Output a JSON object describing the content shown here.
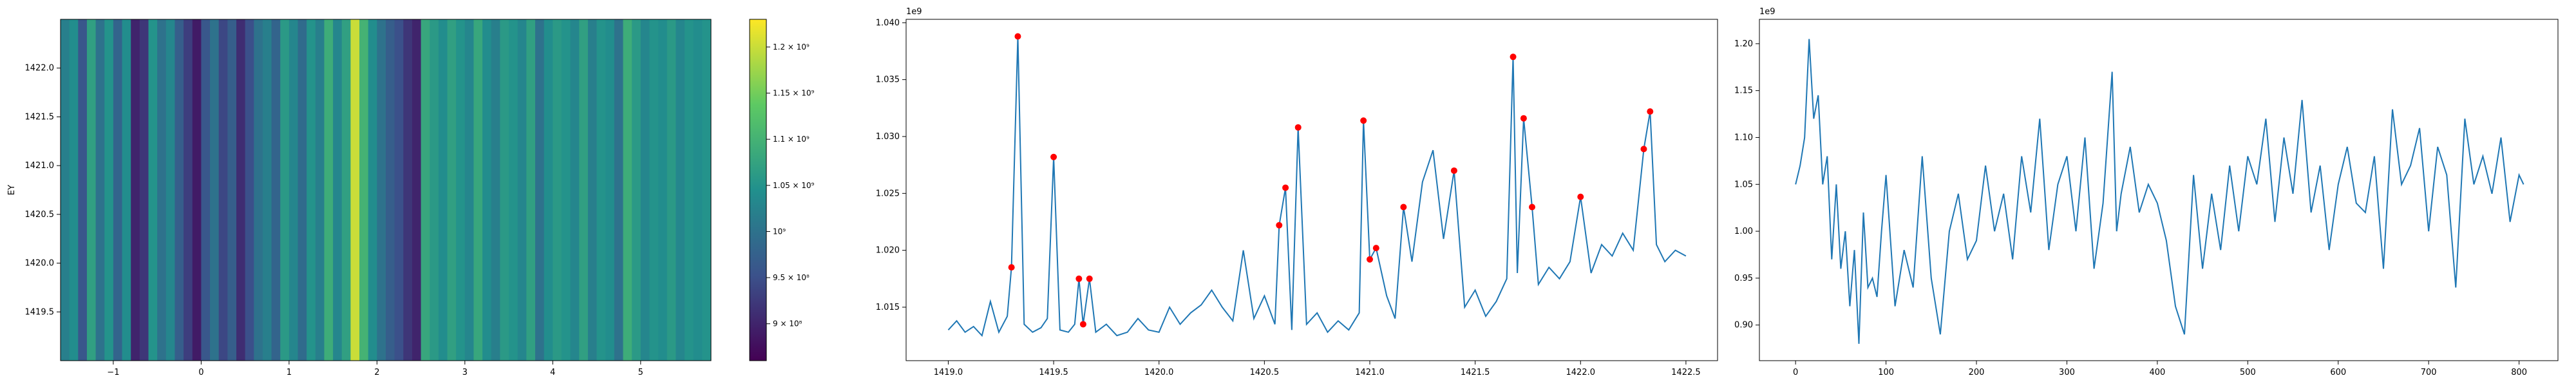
{
  "chart_data": [
    {
      "type": "heatmap",
      "ylabel": "EY",
      "x_ticks": [
        -1,
        0,
        1,
        2,
        3,
        4,
        5
      ],
      "y_ticks": [
        1419.5,
        1420.0,
        1420.5,
        1421.0,
        1421.5,
        1422.0
      ],
      "xlim": [
        -1.6,
        5.8
      ],
      "ylim": [
        1419.0,
        1422.5
      ],
      "colormap": "viridis",
      "colorbar": {
        "vmin": 860000000.0,
        "vmax": 1230000000.0,
        "tick_values": [
          900000000.0,
          950000000.0,
          1000000000.0,
          1050000000.0,
          1100000000.0,
          1150000000.0,
          1200000000.0
        ],
        "tick_labels": [
          "9 × 10⁸",
          "9.5 × 10⁸",
          "10⁹",
          "1.05 × 10⁹",
          "1.1 × 10⁹",
          "1.15 × 10⁹",
          "1.2 × 10⁹"
        ]
      },
      "column_levels": [
        [
          -1.6,
          1020000000.0
        ],
        [
          -1.5,
          1040000000.0
        ],
        [
          -1.4,
          960000000.0
        ],
        [
          -1.3,
          1070000000.0
        ],
        [
          -1.2,
          1000000000.0
        ],
        [
          -1.1,
          1050000000.0
        ],
        [
          -1.0,
          980000000.0
        ],
        [
          -0.9,
          1040000000.0
        ],
        [
          -0.8,
          900000000.0
        ],
        [
          -0.7,
          920000000.0
        ],
        [
          -0.6,
          1050000000.0
        ],
        [
          -0.5,
          1000000000.0
        ],
        [
          -0.4,
          1030000000.0
        ],
        [
          -0.3,
          970000000.0
        ],
        [
          -0.2,
          930000000.0
        ],
        [
          -0.1,
          890000000.0
        ],
        [
          0.0,
          960000000.0
        ],
        [
          0.1,
          1000000000.0
        ],
        [
          0.2,
          940000000.0
        ],
        [
          0.3,
          970000000.0
        ],
        [
          0.4,
          910000000.0
        ],
        [
          0.5,
          950000000.0
        ],
        [
          0.6,
          1000000000.0
        ],
        [
          0.7,
          1020000000.0
        ],
        [
          0.8,
          980000000.0
        ],
        [
          0.9,
          1060000000.0
        ],
        [
          1.0,
          1030000000.0
        ],
        [
          1.1,
          990000000.0
        ],
        [
          1.2,
          1050000000.0
        ],
        [
          1.3,
          1020000000.0
        ],
        [
          1.4,
          1090000000.0
        ],
        [
          1.5,
          1030000000.0
        ],
        [
          1.6,
          1070000000.0
        ],
        [
          1.7,
          1200000000.0
        ],
        [
          1.8,
          1100000000.0
        ],
        [
          1.9,
          1040000000.0
        ],
        [
          2.0,
          1000000000.0
        ],
        [
          2.1,
          970000000.0
        ],
        [
          2.2,
          950000000.0
        ],
        [
          2.3,
          920000000.0
        ],
        [
          2.4,
          900000000.0
        ],
        [
          2.5,
          1080000000.0
        ],
        [
          2.6,
          1060000000.0
        ],
        [
          2.7,
          1040000000.0
        ],
        [
          2.8,
          1070000000.0
        ],
        [
          2.9,
          1050000000.0
        ],
        [
          3.0,
          1030000000.0
        ],
        [
          3.1,
          1080000000.0
        ],
        [
          3.2,
          1040000000.0
        ],
        [
          3.3,
          1020000000.0
        ],
        [
          3.4,
          1060000000.0
        ],
        [
          3.5,
          1050000000.0
        ],
        [
          3.6,
          1030000000.0
        ],
        [
          3.7,
          1070000000.0
        ],
        [
          3.8,
          1000000000.0
        ],
        [
          3.9,
          1040000000.0
        ],
        [
          4.0,
          1060000000.0
        ],
        [
          4.1,
          1050000000.0
        ],
        [
          4.2,
          1030000000.0
        ],
        [
          4.3,
          1070000000.0
        ],
        [
          4.4,
          1020000000.0
        ],
        [
          4.5,
          1050000000.0
        ],
        [
          4.6,
          1040000000.0
        ],
        [
          4.7,
          1000000000.0
        ],
        [
          4.8,
          1090000000.0
        ],
        [
          4.9,
          1060000000.0
        ],
        [
          5.0,
          1030000000.0
        ],
        [
          5.1,
          1050000000.0
        ],
        [
          5.2,
          1040000000.0
        ],
        [
          5.3,
          1060000000.0
        ],
        [
          5.4,
          1030000000.0
        ],
        [
          5.5,
          1050000000.0
        ],
        [
          5.6,
          1040000000.0
        ],
        [
          5.7,
          1050000000.0
        ],
        [
          5.8,
          1040000000.0
        ]
      ]
    },
    {
      "type": "line",
      "offset_label": "1e9",
      "line_color": "#1f77b4",
      "marker_color": "#ff0000",
      "xlim": [
        1418.8,
        1422.65
      ],
      "ylim": [
        1.0103,
        1.0403
      ],
      "x_ticks": [
        1419.0,
        1419.5,
        1420.0,
        1420.5,
        1421.0,
        1421.5,
        1422.0,
        1422.5
      ],
      "x_tick_labels": [
        "1419.0",
        "1419.5",
        "1420.0",
        "1420.5",
        "1421.0",
        "1421.5",
        "1422.0",
        "1422.5"
      ],
      "y_ticks": [
        1.015,
        1.02,
        1.025,
        1.03,
        1.035,
        1.04
      ],
      "y_tick_labels": [
        "1.015",
        "1.020",
        "1.025",
        "1.030",
        "1.035",
        "1.040"
      ],
      "x": [
        1419.0,
        1419.04,
        1419.08,
        1419.12,
        1419.16,
        1419.2,
        1419.24,
        1419.28,
        1419.3,
        1419.33,
        1419.36,
        1419.4,
        1419.44,
        1419.47,
        1419.5,
        1419.53,
        1419.57,
        1419.6,
        1419.62,
        1419.64,
        1419.67,
        1419.7,
        1419.75,
        1419.8,
        1419.85,
        1419.9,
        1419.95,
        1420.0,
        1420.05,
        1420.1,
        1420.15,
        1420.2,
        1420.25,
        1420.3,
        1420.35,
        1420.4,
        1420.45,
        1420.5,
        1420.55,
        1420.57,
        1420.6,
        1420.63,
        1420.66,
        1420.7,
        1420.75,
        1420.8,
        1420.85,
        1420.9,
        1420.95,
        1420.97,
        1421.0,
        1421.03,
        1421.08,
        1421.12,
        1421.16,
        1421.2,
        1421.25,
        1421.3,
        1421.35,
        1421.4,
        1421.45,
        1421.5,
        1421.55,
        1421.6,
        1421.65,
        1421.68,
        1421.7,
        1421.73,
        1421.77,
        1421.8,
        1421.85,
        1421.9,
        1421.95,
        1422.0,
        1422.05,
        1422.1,
        1422.15,
        1422.2,
        1422.25,
        1422.3,
        1422.33,
        1422.36,
        1422.4,
        1422.45,
        1422.5
      ],
      "y": [
        1.013,
        1.0138,
        1.0128,
        1.0133,
        1.0125,
        1.0155,
        1.0128,
        1.0142,
        1.0185,
        1.0388,
        1.0135,
        1.0128,
        1.0132,
        1.014,
        1.0282,
        1.013,
        1.0128,
        1.0135,
        1.0175,
        1.0135,
        1.0175,
        1.0128,
        1.0135,
        1.0125,
        1.0128,
        1.014,
        1.013,
        1.0128,
        1.015,
        1.0135,
        1.0145,
        1.0152,
        1.0165,
        1.015,
        1.0138,
        1.02,
        1.014,
        1.016,
        1.0135,
        1.0222,
        1.0255,
        1.013,
        1.0308,
        1.0135,
        1.0145,
        1.0128,
        1.0138,
        1.013,
        1.0145,
        1.0314,
        1.0192,
        1.0202,
        1.016,
        1.014,
        1.0238,
        1.019,
        1.026,
        1.0288,
        1.021,
        1.027,
        1.015,
        1.0165,
        1.0142,
        1.0155,
        1.0175,
        1.037,
        1.018,
        1.0316,
        1.0238,
        1.017,
        1.0185,
        1.0175,
        1.019,
        1.0247,
        1.018,
        1.0205,
        1.0195,
        1.0215,
        1.02,
        1.0289,
        1.0322,
        1.0205,
        1.019,
        1.02,
        1.0195
      ],
      "peaks_x": [
        1419.3,
        1419.33,
        1419.5,
        1419.62,
        1419.64,
        1419.67,
        1420.57,
        1420.6,
        1420.66,
        1420.97,
        1421.0,
        1421.03,
        1421.16,
        1421.4,
        1421.68,
        1421.73,
        1421.77,
        1422.0,
        1422.3,
        1422.33
      ],
      "peaks_y": [
        1.0185,
        1.0388,
        1.0282,
        1.0175,
        1.0135,
        1.0175,
        1.0222,
        1.0255,
        1.0308,
        1.0314,
        1.0192,
        1.0202,
        1.0238,
        1.027,
        1.037,
        1.0316,
        1.0238,
        1.0247,
        1.0289,
        1.0322
      ]
    },
    {
      "type": "line",
      "offset_label": "1e9",
      "line_color": "#1f77b4",
      "xlim": [
        -40,
        843
      ],
      "ylim": [
        0.862,
        1.226
      ],
      "x_ticks": [
        0,
        100,
        200,
        300,
        400,
        500,
        600,
        700,
        800
      ],
      "x_tick_labels": [
        "0",
        "100",
        "200",
        "300",
        "400",
        "500",
        "600",
        "700",
        "800"
      ],
      "y_ticks": [
        0.9,
        0.95,
        1.0,
        1.05,
        1.1,
        1.15,
        1.2
      ],
      "y_tick_labels": [
        "0.90",
        "0.95",
        "1.00",
        "1.05",
        "1.10",
        "1.15",
        "1.20"
      ],
      "x": [
        0,
        5,
        10,
        15,
        20,
        25,
        30,
        35,
        40,
        45,
        50,
        55,
        60,
        65,
        70,
        75,
        80,
        85,
        90,
        95,
        100,
        110,
        120,
        130,
        140,
        150,
        160,
        170,
        180,
        190,
        200,
        210,
        220,
        230,
        240,
        250,
        260,
        270,
        280,
        290,
        300,
        310,
        320,
        330,
        340,
        350,
        355,
        360,
        370,
        380,
        390,
        400,
        410,
        420,
        430,
        440,
        450,
        460,
        470,
        480,
        490,
        500,
        510,
        520,
        530,
        540,
        550,
        560,
        570,
        580,
        590,
        600,
        610,
        620,
        630,
        640,
        650,
        660,
        670,
        680,
        690,
        700,
        710,
        720,
        730,
        740,
        750,
        760,
        770,
        780,
        790,
        800,
        805
      ],
      "y": [
        1.05,
        1.07,
        1.1,
        1.205,
        1.12,
        1.145,
        1.05,
        1.08,
        0.97,
        1.05,
        0.96,
        1.0,
        0.92,
        0.98,
        0.88,
        1.02,
        0.94,
        0.95,
        0.93,
        1.0,
        1.06,
        0.92,
        0.98,
        0.94,
        1.08,
        0.95,
        0.89,
        1.0,
        1.04,
        0.97,
        0.99,
        1.07,
        1.0,
        1.04,
        0.97,
        1.08,
        1.02,
        1.12,
        0.98,
        1.05,
        1.08,
        1.0,
        1.1,
        0.96,
        1.03,
        1.17,
        1.0,
        1.04,
        1.09,
        1.02,
        1.05,
        1.03,
        0.99,
        0.92,
        0.89,
        1.06,
        0.96,
        1.04,
        0.98,
        1.07,
        1.0,
        1.08,
        1.05,
        1.12,
        1.01,
        1.1,
        1.04,
        1.14,
        1.02,
        1.07,
        0.98,
        1.05,
        1.09,
        1.03,
        1.02,
        1.08,
        0.96,
        1.13,
        1.05,
        1.07,
        1.11,
        1.0,
        1.09,
        1.06,
        0.94,
        1.12,
        1.05,
        1.08,
        1.04,
        1.1,
        1.01,
        1.06,
        1.05
      ]
    }
  ]
}
